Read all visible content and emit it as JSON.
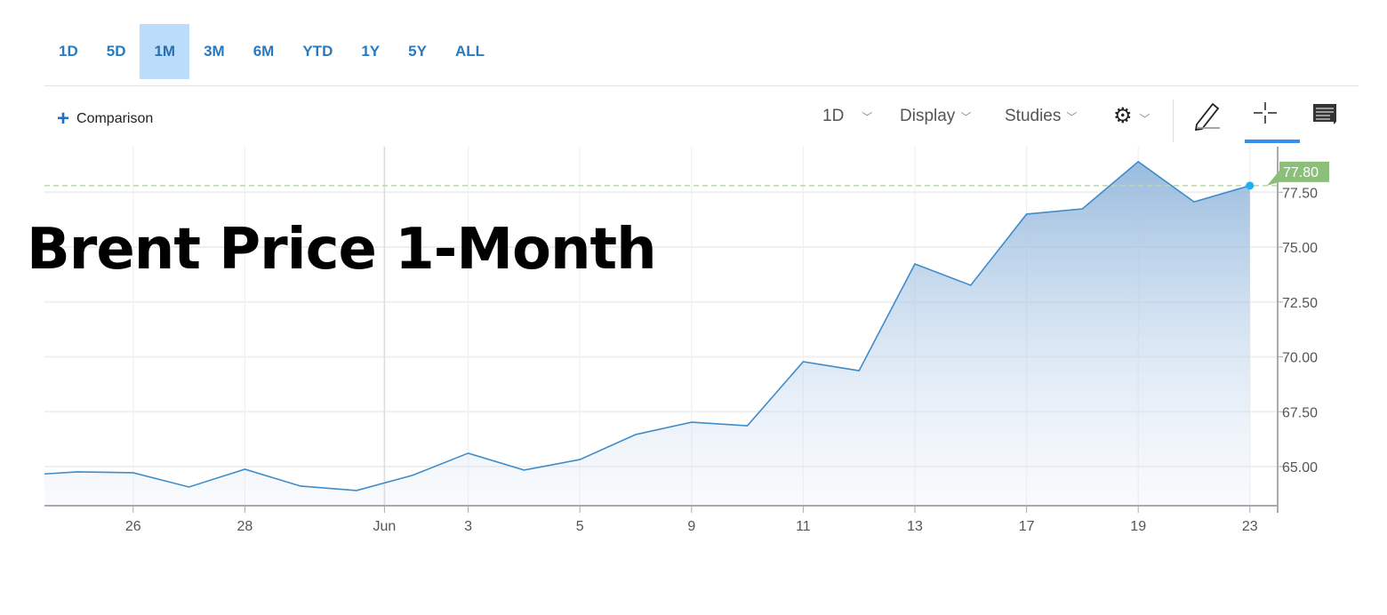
{
  "range_tabs": [
    {
      "label": "1D"
    },
    {
      "label": "5D"
    },
    {
      "label": "1M",
      "active": true
    },
    {
      "label": "3M"
    },
    {
      "label": "6M"
    },
    {
      "label": "YTD"
    },
    {
      "label": "1Y"
    },
    {
      "label": "5Y"
    },
    {
      "label": "ALL"
    }
  ],
  "toolbar": {
    "comparison_label": "Comparison",
    "interval_label": "1D",
    "display_label": "Display",
    "studies_label": "Studies",
    "icons": [
      "gear-icon",
      "pencil-icon",
      "crosshair-icon",
      "comment-icon"
    ],
    "active_tool": "crosshair-icon"
  },
  "overlay_title": "Brent Price 1-Month",
  "colors": {
    "line": "#3f8cc9",
    "fill_top": "#94b8dc",
    "accent": "#3b8cf0",
    "last_price": "#8cc07a",
    "last_dot": "#1eb0f5"
  },
  "chart_data": {
    "type": "area",
    "title": "",
    "xlabel": "",
    "ylabel": "",
    "x": [
      "May 22",
      "May 23",
      "May 26",
      "May 27",
      "May 28",
      "May 29",
      "May 30",
      "Jun 2",
      "Jun 3",
      "Jun 4",
      "Jun 5",
      "Jun 6",
      "Jun 9",
      "Jun 10",
      "Jun 11",
      "Jun 12",
      "Jun 13",
      "Jun 16",
      "Jun 17",
      "Jun 18",
      "Jun 19",
      "Jun 20",
      "Jun 23"
    ],
    "values": [
      64.6,
      64.76,
      64.72,
      64.07,
      64.88,
      64.11,
      63.91,
      64.6,
      65.61,
      64.84,
      65.32,
      66.46,
      67.02,
      66.86,
      69.78,
      69.37,
      74.23,
      73.26,
      76.5,
      76.74,
      78.89,
      77.06,
      77.8
    ],
    "x_ticks": [
      {
        "label": "26",
        "at": "May 26"
      },
      {
        "label": "28",
        "at": "May 28"
      },
      {
        "label": "Jun",
        "at": "Jun 1"
      },
      {
        "label": "3",
        "at": "Jun 3"
      },
      {
        "label": "5",
        "at": "Jun 5"
      },
      {
        "label": "9",
        "at": "Jun 9"
      },
      {
        "label": "11",
        "at": "Jun 11"
      },
      {
        "label": "13",
        "at": "Jun 13"
      },
      {
        "label": "17",
        "at": "Jun 17"
      },
      {
        "label": "19",
        "at": "Jun 19"
      },
      {
        "label": "23",
        "at": "Jun 23"
      }
    ],
    "y_ticks": [
      "65.00",
      "67.50",
      "70.00",
      "72.50",
      "75.00",
      "77.50"
    ],
    "ylim": [
      63.6,
      79.4
    ],
    "last_price_label": "77.80",
    "grid": true,
    "y_axis_side": "right"
  }
}
